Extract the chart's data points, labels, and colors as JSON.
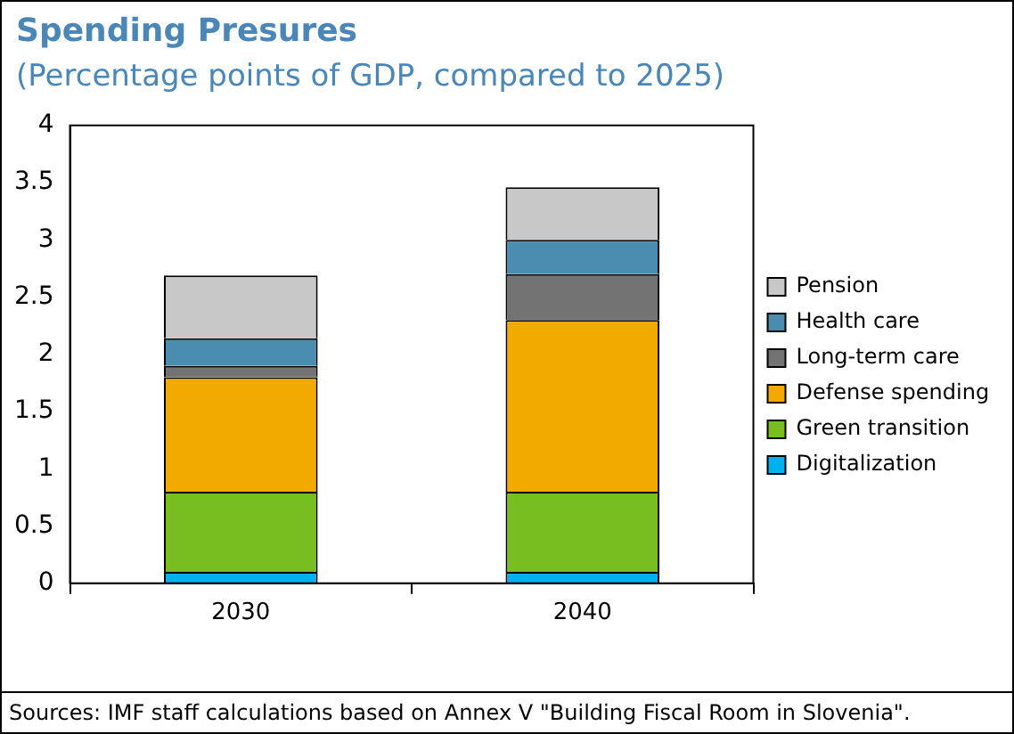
{
  "chart_data": {
    "type": "bar",
    "title": "Spending Presures",
    "subtitle": "(Percentage points of GDP, compared to 2025)",
    "categories": [
      "2030",
      "2040"
    ],
    "stacked": true,
    "legend": "right",
    "grid": false,
    "ylim": [
      0,
      4
    ],
    "yticks": [
      0,
      0.5,
      1,
      1.5,
      2,
      2.5,
      3,
      3.5,
      4
    ],
    "series": [
      {
        "name": "Digitalization",
        "color": "#00b0f0",
        "values": [
          0.1,
          0.1
        ]
      },
      {
        "name": "Green transition",
        "color": "#78be20",
        "values": [
          0.7,
          0.7
        ]
      },
      {
        "name": "Defense spending",
        "color": "#f2a900",
        "values": [
          1.0,
          1.5
        ]
      },
      {
        "name": "Long-term care",
        "color": "#737373",
        "values": [
          0.1,
          0.4
        ]
      },
      {
        "name": "Health care",
        "color": "#4a8db0",
        "values": [
          0.24,
          0.3
        ]
      },
      {
        "name": "Pension",
        "color": "#c8c8c8",
        "values": [
          0.55,
          0.46
        ]
      }
    ],
    "annotations": [
      "Sources: IMF staff calculations based on Annex V \"Building Fiscal Room in Slovenia\"."
    ]
  }
}
